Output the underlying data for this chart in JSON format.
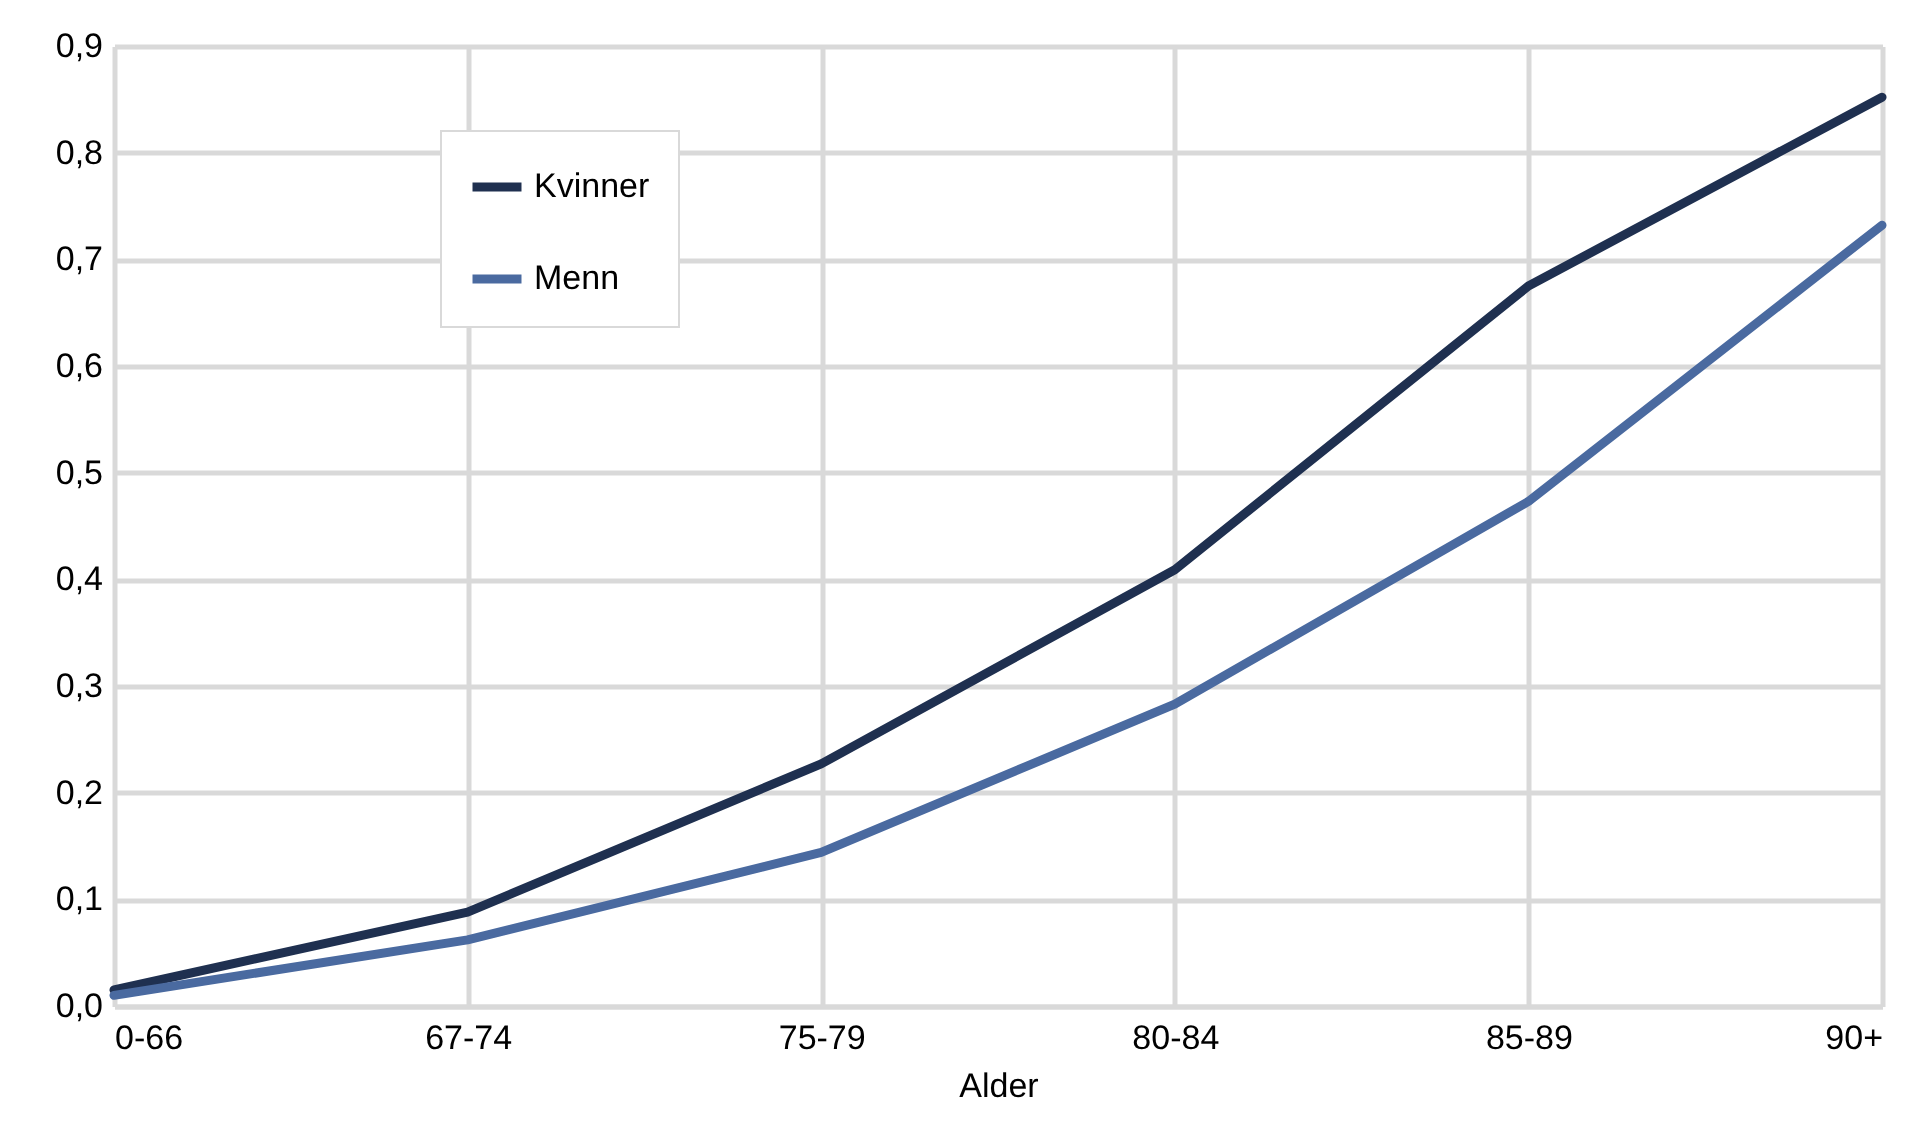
{
  "chart_data": {
    "type": "line",
    "xlabel": "Alder",
    "categories": [
      "0-66",
      "67-74",
      "75-79",
      "80-84",
      "85-89",
      "90+"
    ],
    "series": [
      {
        "name": "Kvinner",
        "color": "#1f3050",
        "values": [
          0.015,
          0.088,
          0.227,
          0.409,
          0.675,
          0.852
        ]
      },
      {
        "name": "Menn",
        "color": "#4a6aa0",
        "values": [
          0.01,
          0.062,
          0.144,
          0.283,
          0.473,
          0.732
        ]
      }
    ],
    "ylim": [
      0,
      0.9
    ],
    "yticks": [
      {
        "value": 0,
        "label": "0,0"
      },
      {
        "value": 0.1,
        "label": "0,1"
      },
      {
        "value": 0.2,
        "label": "0,2"
      },
      {
        "value": 0.3,
        "label": "0,3"
      },
      {
        "value": 0.4,
        "label": "0,4"
      },
      {
        "value": 0.5,
        "label": "0,5"
      },
      {
        "value": 0.6,
        "label": "0,6"
      },
      {
        "value": 0.7,
        "label": "0,7"
      },
      {
        "value": 0.8,
        "label": "0,8"
      },
      {
        "value": 0.9,
        "label": "0,9"
      }
    ],
    "grid": true,
    "legend": "top left",
    "marker": "none",
    "line_style": "solid"
  }
}
